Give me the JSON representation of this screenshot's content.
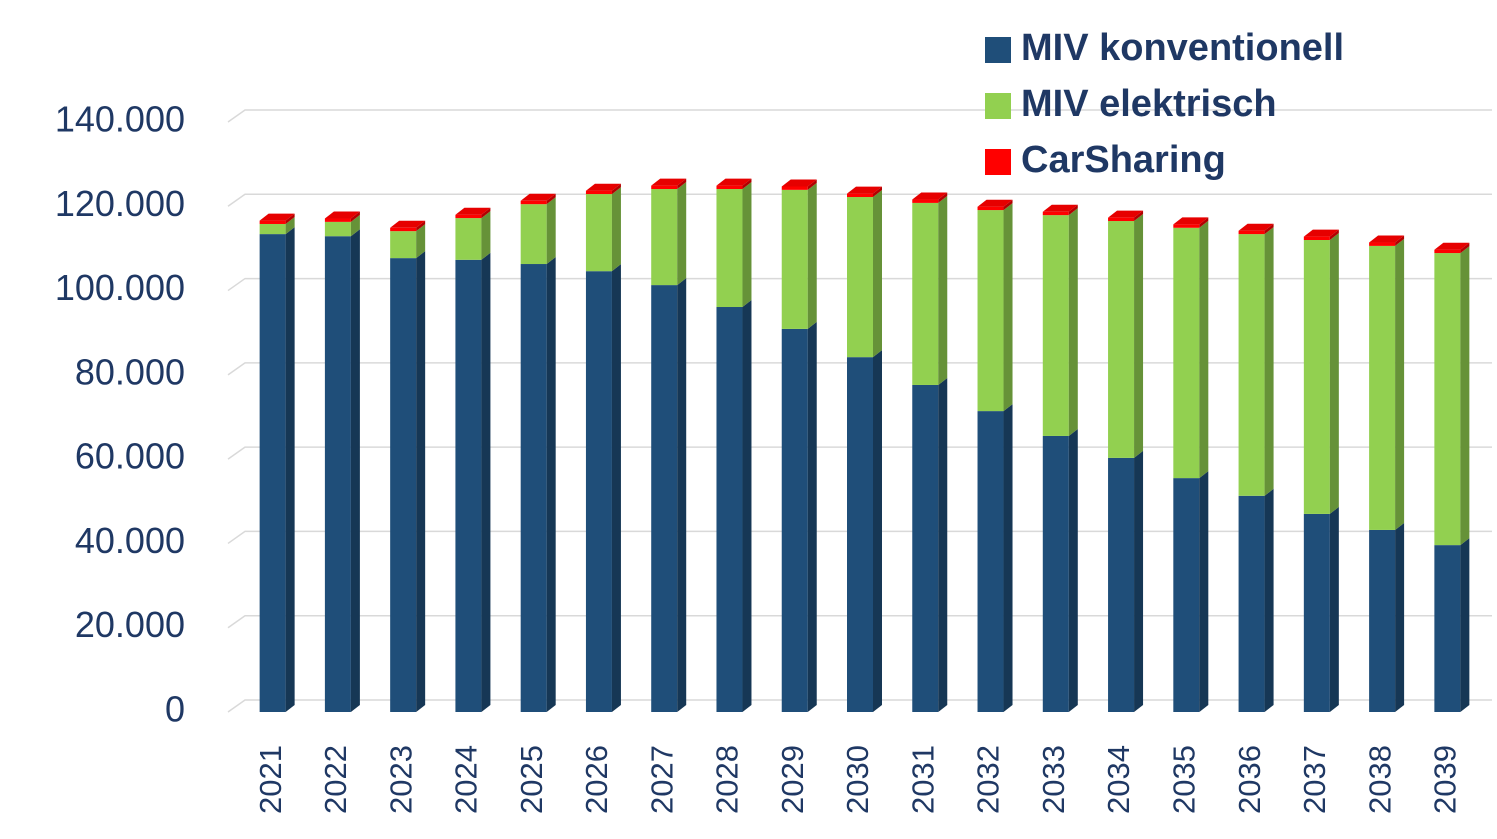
{
  "chart_data": {
    "type": "bar",
    "stacked": true,
    "three_d": true,
    "categories": [
      "2021",
      "2022",
      "2023",
      "2024",
      "2025",
      "2026",
      "2027",
      "2028",
      "2029",
      "2030",
      "2031",
      "2032",
      "2033",
      "2034",
      "2035",
      "2036",
      "2037",
      "2038",
      "2039"
    ],
    "series": [
      {
        "name": "MIV konventionell",
        "color": "#1f4e79",
        "values": [
          113400,
          112900,
          107700,
          107300,
          106300,
          104600,
          101300,
          96100,
          90900,
          84200,
          77600,
          71400,
          65500,
          60300,
          55500,
          51300,
          47000,
          43200,
          39600
        ]
      },
      {
        "name": "MIV elektrisch",
        "color": "#92d050",
        "values": [
          2400,
          3400,
          6400,
          9900,
          14200,
          18300,
          22800,
          28000,
          33000,
          38000,
          43200,
          47700,
          52400,
          56200,
          59400,
          62100,
          65000,
          67400,
          69300
        ]
      },
      {
        "name": "CarSharing",
        "color": "#ff0000",
        "values": [
          800,
          800,
          800,
          800,
          800,
          800,
          800,
          800,
          800,
          800,
          800,
          800,
          800,
          800,
          800,
          800,
          800,
          800,
          800
        ]
      }
    ],
    "ylim": [
      0,
      140000
    ],
    "yticks": [
      0,
      {
        "value": 20000,
        "label": "20.000"
      },
      {
        "value": 40000,
        "label": "40.000"
      },
      {
        "value": 60000,
        "label": "60.000"
      },
      {
        "value": 80000,
        "label": "80.000"
      },
      {
        "value": 100000,
        "label": "100.000"
      },
      {
        "value": 120000,
        "label": "120.000"
      },
      {
        "value": 140000,
        "label": "140.000"
      }
    ],
    "grid": true,
    "legend": "top-right"
  }
}
